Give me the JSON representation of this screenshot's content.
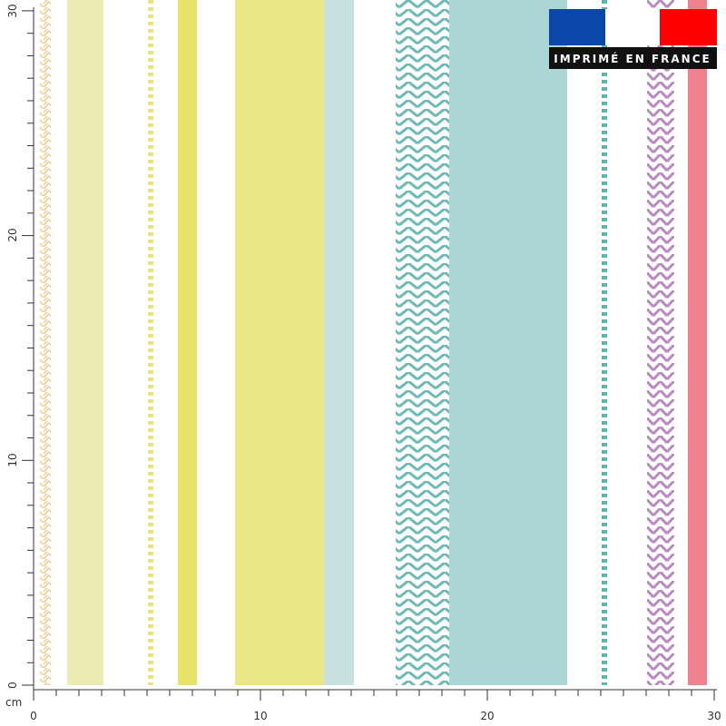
{
  "ruler": {
    "unit": "cm",
    "x_labels": [
      "0",
      "10",
      "20",
      "30"
    ],
    "y_labels": [
      "0",
      "10",
      "20",
      "30"
    ]
  },
  "badge": {
    "text": "IMPRIMÉ EN FRANCE"
  }
}
